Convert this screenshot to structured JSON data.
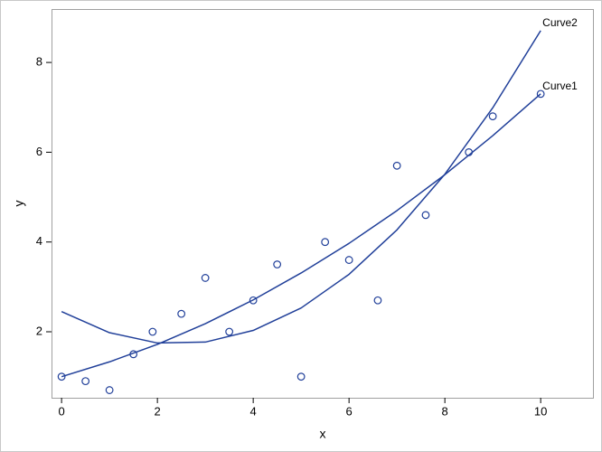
{
  "chart_data": {
    "type": "scatter",
    "xlabel": "x",
    "ylabel": "y",
    "xlim": [
      -0.21,
      11.11
    ],
    "ylim": [
      0.53,
      9.19
    ],
    "xticks": [
      0,
      2,
      4,
      6,
      8,
      10
    ],
    "yticks": [
      2,
      4,
      6,
      8
    ],
    "series": [
      {
        "type": "scatter",
        "color": "#203f99",
        "x": [
          0,
          0.5,
          1,
          1.5,
          1.9,
          2.5,
          3,
          3.5,
          4,
          4.5,
          5,
          5.5,
          6,
          6.6,
          7,
          7.6,
          8.5,
          9,
          10
        ],
        "values": [
          1,
          0.9,
          0.7,
          1.5,
          2,
          2.4,
          3.2,
          2,
          2.7,
          3.5,
          1,
          4,
          3.6,
          2.7,
          5.7,
          4.6,
          6,
          6.8,
          7.3
        ]
      },
      {
        "type": "line",
        "name": "Curve1",
        "color": "#203f99",
        "x": [
          0,
          1,
          2,
          3,
          4,
          5,
          6,
          7,
          8,
          9,
          10
        ],
        "values": [
          1,
          1.33,
          1.72,
          2.18,
          2.71,
          3.31,
          3.97,
          4.7,
          5.5,
          6.37,
          7.3
        ]
      },
      {
        "type": "line",
        "name": "Curve2",
        "color": "#203f99",
        "x": [
          0,
          1,
          2,
          3,
          4,
          5,
          6,
          7,
          8,
          9,
          10
        ],
        "values": [
          2.45,
          1.98,
          1.75,
          1.77,
          2.03,
          2.53,
          3.28,
          4.27,
          5.51,
          6.99,
          8.71
        ]
      }
    ]
  }
}
